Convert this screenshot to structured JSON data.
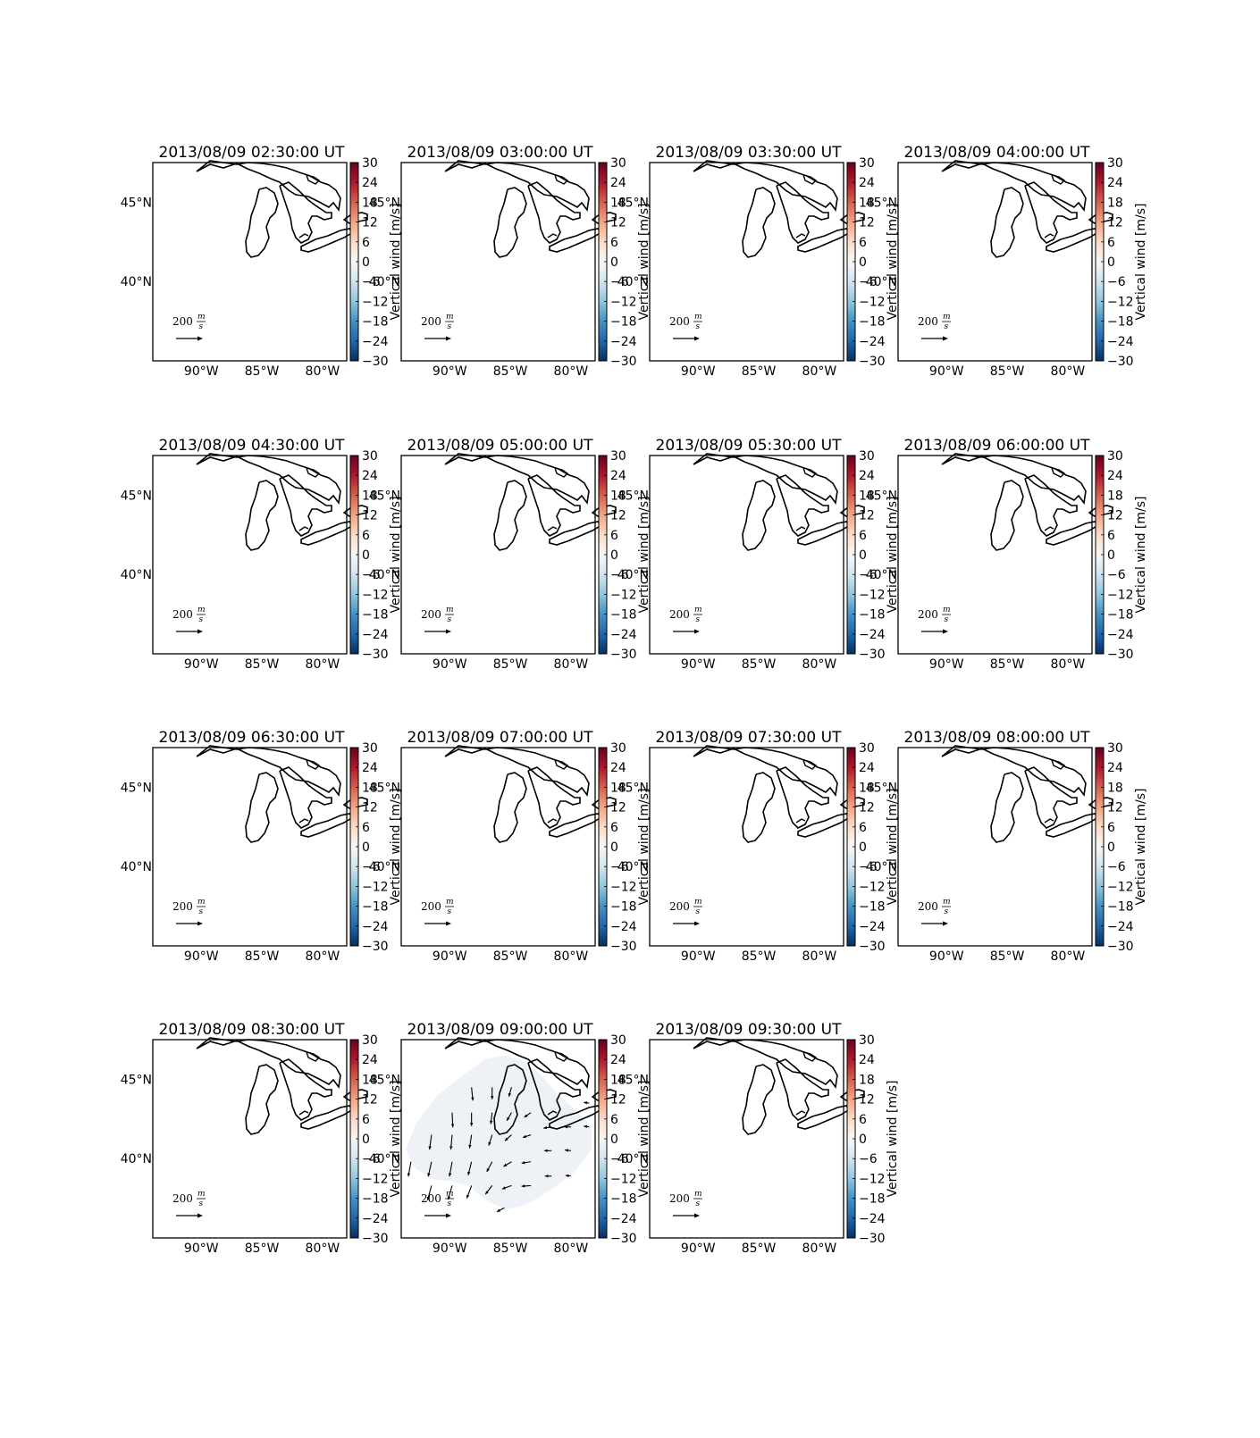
{
  "chart_data": {
    "type": "map",
    "panel_titles": [
      "2013/08/09 02:30:00 UT",
      "2013/08/09 03:00:00 UT",
      "2013/08/09 03:30:00 UT",
      "2013/08/09 04:00:00 UT",
      "2013/08/09 04:30:00 UT",
      "2013/08/09 05:00:00 UT",
      "2013/08/09 05:30:00 UT",
      "2013/08/09 06:00:00 UT",
      "2013/08/09 06:30:00 UT",
      "2013/08/09 07:00:00 UT",
      "2013/08/09 07:30:00 UT",
      "2013/08/09 08:00:00 UT",
      "2013/08/09 08:30:00 UT",
      "2013/08/09 09:00:00 UT",
      "2013/08/09 09:30:00 UT"
    ],
    "lon_ticks": [
      "90°W",
      "85°W",
      "80°W"
    ],
    "lat_ticks": [
      "45°N",
      "40°N"
    ],
    "lon_range": [
      -94,
      -78
    ],
    "lat_range": [
      35,
      47.5
    ],
    "colorbar": {
      "label": "Vertical wind [m/s]",
      "ticks": [
        "30",
        "24",
        "18",
        "12",
        "6",
        "0",
        "−6",
        "−12",
        "−18",
        "−24",
        "−30"
      ],
      "range": [
        -30,
        30
      ],
      "colormap": "RdBu_r"
    },
    "reference_vector": {
      "value": 200,
      "unit_num": "m",
      "unit_den": "s"
    },
    "data_panel_index": 13,
    "data_field_value": 0,
    "wind_vectors": [
      {
        "lon": -93.2,
        "lat": 39.8,
        "u": -20,
        "v": -110
      },
      {
        "lon": -91.5,
        "lat": 41.5,
        "u": -15,
        "v": -110
      },
      {
        "lon": -91.5,
        "lat": 39.8,
        "u": -25,
        "v": -110
      },
      {
        "lon": -91.5,
        "lat": 38.3,
        "u": -30,
        "v": -110
      },
      {
        "lon": -89.8,
        "lat": 42.9,
        "u": 5,
        "v": -110
      },
      {
        "lon": -89.8,
        "lat": 41.5,
        "u": -10,
        "v": -110
      },
      {
        "lon": -89.8,
        "lat": 39.8,
        "u": -20,
        "v": -110
      },
      {
        "lon": -89.8,
        "lat": 38.3,
        "u": -30,
        "v": -105
      },
      {
        "lon": -88.2,
        "lat": 44.5,
        "u": 10,
        "v": -100
      },
      {
        "lon": -88.2,
        "lat": 42.9,
        "u": 0,
        "v": -100
      },
      {
        "lon": -88.2,
        "lat": 41.5,
        "u": -15,
        "v": -100
      },
      {
        "lon": -88.2,
        "lat": 39.8,
        "u": -25,
        "v": -100
      },
      {
        "lon": -88.2,
        "lat": 38.3,
        "u": -35,
        "v": -95
      },
      {
        "lon": -86.5,
        "lat": 44.5,
        "u": 0,
        "v": -90
      },
      {
        "lon": -86.5,
        "lat": 42.9,
        "u": -10,
        "v": -85
      },
      {
        "lon": -86.5,
        "lat": 41.5,
        "u": -25,
        "v": -80
      },
      {
        "lon": -86.5,
        "lat": 39.8,
        "u": -40,
        "v": -75
      },
      {
        "lon": -86.5,
        "lat": 38.3,
        "u": -50,
        "v": -65
      },
      {
        "lon": -84.9,
        "lat": 44.5,
        "u": -20,
        "v": -70
      },
      {
        "lon": -84.9,
        "lat": 42.9,
        "u": -35,
        "v": -60
      },
      {
        "lon": -84.9,
        "lat": 41.5,
        "u": -50,
        "v": -45
      },
      {
        "lon": -84.9,
        "lat": 39.8,
        "u": -60,
        "v": -35
      },
      {
        "lon": -84.9,
        "lat": 38.3,
        "u": -70,
        "v": -25
      },
      {
        "lon": -85.5,
        "lat": 36.9,
        "u": -55,
        "v": -30
      },
      {
        "lon": -83.3,
        "lat": 42.9,
        "u": -50,
        "v": -35
      },
      {
        "lon": -83.3,
        "lat": 41.5,
        "u": -60,
        "v": -20
      },
      {
        "lon": -83.3,
        "lat": 39.8,
        "u": -70,
        "v": -10
      },
      {
        "lon": -83.3,
        "lat": 38.3,
        "u": -70,
        "v": -5
      },
      {
        "lon": -81.6,
        "lat": 42.0,
        "u": -60,
        "v": -10
      },
      {
        "lon": -81.6,
        "lat": 40.5,
        "u": -55,
        "v": 0
      },
      {
        "lon": -81.6,
        "lat": 38.9,
        "u": -50,
        "v": 0
      },
      {
        "lon": -80.0,
        "lat": 42.0,
        "u": -50,
        "v": 0
      },
      {
        "lon": -80.0,
        "lat": 40.5,
        "u": -45,
        "v": 5
      },
      {
        "lon": -80.0,
        "lat": 38.9,
        "u": -40,
        "v": 5
      },
      {
        "lon": -78.5,
        "lat": 43.5,
        "u": -40,
        "v": 5
      },
      {
        "lon": -78.5,
        "lat": 42.0,
        "u": -40,
        "v": 5
      }
    ]
  },
  "colors": {
    "field_fill": "#eef2f6",
    "axes": "#000000",
    "coast": "#000000"
  }
}
